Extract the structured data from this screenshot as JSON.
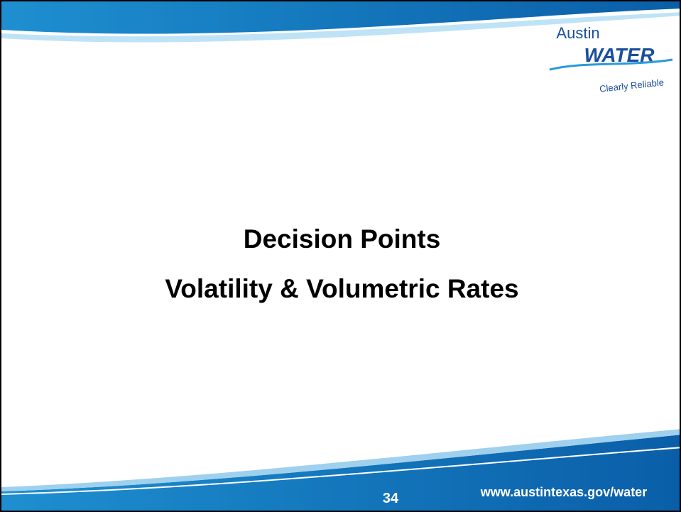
{
  "logo": {
    "name": "Austin",
    "brand": "WATER",
    "tagline": "Clearly Reliable"
  },
  "title": {
    "line1": "Decision Points",
    "line2": "Volatility & Volumetric Rates"
  },
  "footer": {
    "page_number": "34",
    "url": "www.austintexas.gov/water"
  }
}
